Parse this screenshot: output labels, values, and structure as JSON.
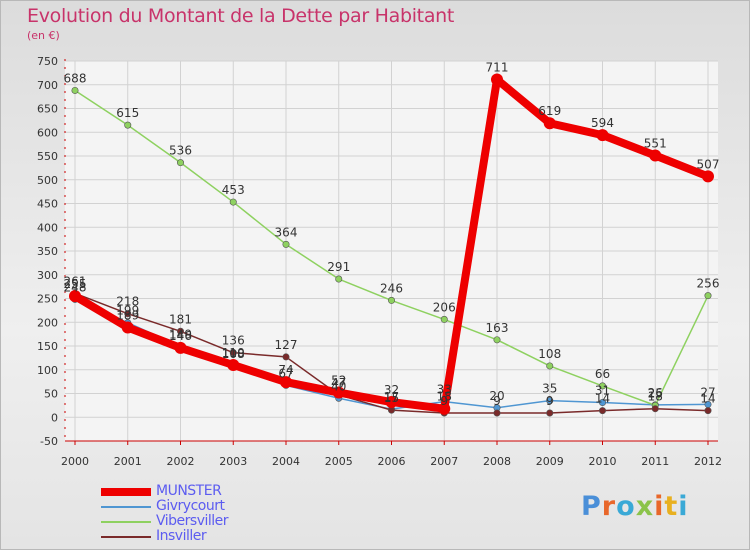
{
  "title": "Evolution du Montant de la Dette par Habitant",
  "subtitle": "(en €)",
  "logo": "Proxiti",
  "colors": {
    "title": "#c8336a",
    "axis": "#cc0000",
    "logo_letters": [
      "#4a8fd8",
      "#e8672a",
      "#3aa9d6",
      "#8bc34a",
      "#e8672a",
      "#e8b020",
      "#3aa9d6"
    ]
  },
  "chart_data": {
    "type": "line",
    "title": "Evolution du Montant de la Dette par Habitant",
    "subtitle": "(en €)",
    "ylim": [
      -50,
      750
    ],
    "yticks": [
      -50,
      0,
      50,
      100,
      150,
      200,
      250,
      300,
      350,
      400,
      450,
      500,
      550,
      600,
      650,
      700,
      750
    ],
    "x": [
      "2000",
      "2001",
      "2002",
      "2003",
      "2004",
      "2005",
      "2006",
      "2007",
      "2008",
      "2009",
      "2010",
      "2011",
      "2012"
    ],
    "grid": true,
    "legend_position": "bottom-left",
    "series": [
      {
        "name": "MUNSTER",
        "color": "#ee0000",
        "width": 8,
        "values": [
          255,
          189,
          146,
          110,
          74,
          52,
          32,
          18,
          711,
          619,
          594,
          551,
          507
        ]
      },
      {
        "name": "Givrycourt",
        "color": "#4f96d2",
        "width": 1.5,
        "values": [
          248,
          199,
          149,
          108,
          67,
          40,
          17,
          33,
          20,
          35,
          31,
          26,
          27
        ]
      },
      {
        "name": "Vibersviller",
        "color": "#8ed160",
        "width": 1.5,
        "values": [
          688,
          615,
          536,
          453,
          364,
          291,
          246,
          206,
          163,
          108,
          66,
          25,
          256
        ]
      },
      {
        "name": "Insviller",
        "color": "#7a2a2a",
        "width": 1.5,
        "values": [
          261,
          218,
          181,
          136,
          127,
          47,
          15,
          9,
          9,
          9,
          14,
          18,
          14
        ]
      }
    ],
    "labels": [
      {
        "x": 0,
        "y": 688,
        "text": "688"
      },
      {
        "x": 1,
        "y": 615,
        "text": "615"
      },
      {
        "x": 2,
        "y": 536,
        "text": "536"
      },
      {
        "x": 3,
        "y": 453,
        "text": "453"
      },
      {
        "x": 4,
        "y": 364,
        "text": "364"
      },
      {
        "x": 5,
        "y": 291,
        "text": "291"
      },
      {
        "x": 6,
        "y": 246,
        "text": "246"
      },
      {
        "x": 7,
        "y": 206,
        "text": "206"
      },
      {
        "x": 8,
        "y": 163,
        "text": "163"
      },
      {
        "x": 9,
        "y": 108,
        "text": "108"
      },
      {
        "x": 10,
        "y": 66,
        "text": "66"
      },
      {
        "x": 11,
        "y": 25,
        "text": "25"
      },
      {
        "x": 12,
        "y": 256,
        "text": "256"
      },
      {
        "x": 8,
        "y": 711,
        "text": "711"
      },
      {
        "x": 9,
        "y": 619,
        "text": "619"
      },
      {
        "x": 10,
        "y": 594,
        "text": "594"
      },
      {
        "x": 11,
        "y": 551,
        "text": "551"
      },
      {
        "x": 12,
        "y": 507,
        "text": "507"
      },
      {
        "x": 0,
        "y": 261,
        "text": "261"
      },
      {
        "x": 0,
        "y": 255,
        "text": "255"
      },
      {
        "x": 0,
        "y": 248,
        "text": "248"
      },
      {
        "x": 1,
        "y": 218,
        "text": "218"
      },
      {
        "x": 1,
        "y": 199,
        "text": "199"
      },
      {
        "x": 1,
        "y": 189,
        "text": "189"
      },
      {
        "x": 2,
        "y": 181,
        "text": "181"
      },
      {
        "x": 2,
        "y": 149,
        "text": "149"
      },
      {
        "x": 2,
        "y": 146,
        "text": "146"
      },
      {
        "x": 3,
        "y": 136,
        "text": "136"
      },
      {
        "x": 3,
        "y": 110,
        "text": "110"
      },
      {
        "x": 3,
        "y": 108,
        "text": "108"
      },
      {
        "x": 4,
        "y": 127,
        "text": "127"
      },
      {
        "x": 4,
        "y": 74,
        "text": "74"
      },
      {
        "x": 4,
        "y": 67,
        "text": "67"
      },
      {
        "x": 5,
        "y": 52,
        "text": "52"
      },
      {
        "x": 5,
        "y": 47,
        "text": "47"
      },
      {
        "x": 5,
        "y": 40,
        "text": "40"
      },
      {
        "x": 6,
        "y": 32,
        "text": "32"
      },
      {
        "x": 6,
        "y": 17,
        "text": "17"
      },
      {
        "x": 6,
        "y": 15,
        "text": "15"
      },
      {
        "x": 7,
        "y": 33,
        "text": "33"
      },
      {
        "x": 7,
        "y": 18,
        "text": "18"
      },
      {
        "x": 7,
        "y": 9,
        "text": "9"
      },
      {
        "x": 8,
        "y": 20,
        "text": "20"
      },
      {
        "x": 8,
        "y": 9,
        "text": "9"
      },
      {
        "x": 9,
        "y": 35,
        "text": "35"
      },
      {
        "x": 9,
        "y": 9,
        "text": "9"
      },
      {
        "x": 10,
        "y": 31,
        "text": "31"
      },
      {
        "x": 10,
        "y": 14,
        "text": "14"
      },
      {
        "x": 11,
        "y": 26,
        "text": "26"
      },
      {
        "x": 11,
        "y": 18,
        "text": "18"
      },
      {
        "x": 12,
        "y": 27,
        "text": "27"
      },
      {
        "x": 12,
        "y": 14,
        "text": "14"
      }
    ]
  }
}
